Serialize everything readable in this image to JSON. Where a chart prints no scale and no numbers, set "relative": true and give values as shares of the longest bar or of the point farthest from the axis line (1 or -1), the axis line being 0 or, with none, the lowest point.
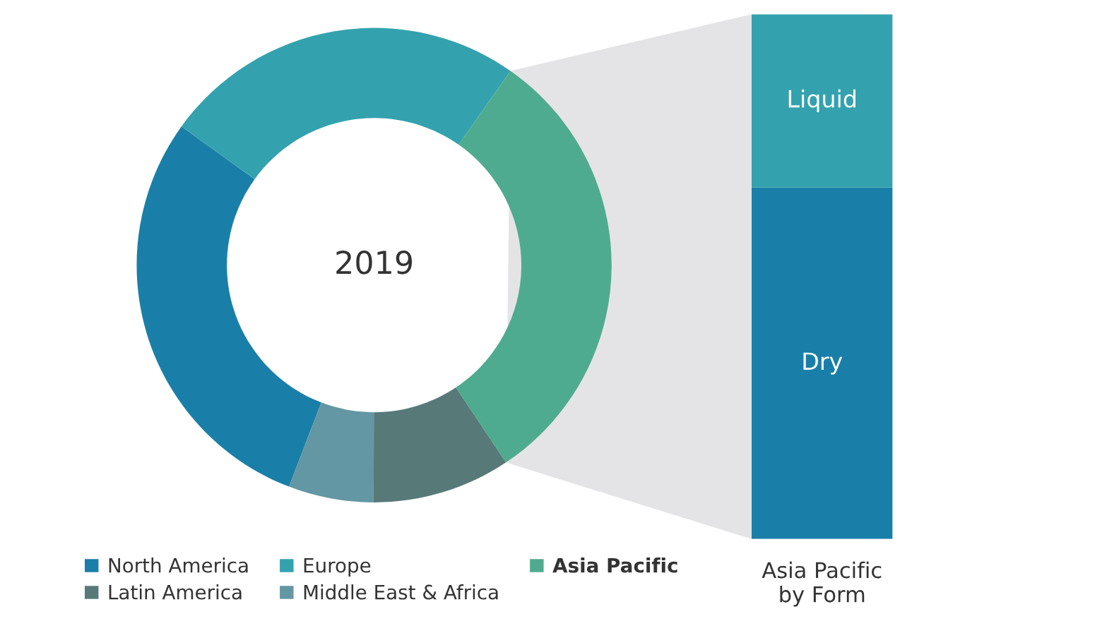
{
  "chart_data": [
    {
      "type": "donut",
      "categories": [
        "North America",
        "Europe",
        "Asia Pacific",
        "Latin America",
        "Middle East & Africa"
      ],
      "values": [
        29.1,
        24.8,
        30.9,
        9.4,
        5.8
      ],
      "colors": [
        "#1a7fa8",
        "#33a2ae",
        "#4fab8f",
        "#577a79",
        "#6397a3"
      ],
      "annotations": [
        "2019"
      ],
      "legend": "bottom"
    },
    {
      "type": "bar",
      "stacked": true,
      "relative": true,
      "categories": [
        null
      ],
      "xlabel": "Asia Pacific\nby Form",
      "series": [
        {
          "name": "Dry",
          "color": "#1a7fa8",
          "values": [
            0.67
          ]
        },
        {
          "name": "Liquid",
          "color": "#33a2ae",
          "values": [
            0.33
          ]
        }
      ]
    }
  ]
}
